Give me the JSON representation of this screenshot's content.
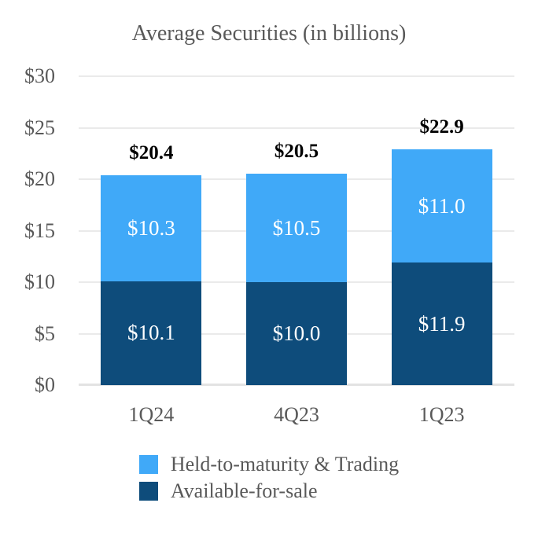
{
  "colors": {
    "background": "#FFFFFF",
    "light_blue": "#40A9F8",
    "dark_blue": "#0E4C7B",
    "text_gray": "#595959",
    "gridline": "#EAEAEA",
    "total_label": "#000000",
    "segment_label": "#FFFFFF"
  },
  "chart_data": {
    "type": "bar",
    "stacked": true,
    "title": "Average Securities (in billions)",
    "categories": [
      "1Q24",
      "4Q23",
      "1Q23"
    ],
    "series": [
      {
        "name": "Available-for-sale",
        "key": "available-for-sale",
        "color_key": "dark_blue",
        "values": [
          10.1,
          10.0,
          11.9
        ],
        "labels": [
          "$10.1",
          "$10.0",
          "$11.9"
        ]
      },
      {
        "name": "Held-to-maturity & Trading",
        "key": "held-to-maturity-trading",
        "color_key": "light_blue",
        "values": [
          10.3,
          10.5,
          11.0
        ],
        "labels": [
          "$10.3",
          "$10.5",
          "$11.0"
        ]
      }
    ],
    "totals": [
      20.4,
      20.5,
      22.9
    ],
    "total_labels": [
      "$20.4",
      "$20.5",
      "$22.9"
    ],
    "ylim": [
      0,
      30
    ],
    "yticks": [
      0,
      5,
      10,
      15,
      20,
      25,
      30
    ],
    "ytick_labels": [
      "$0",
      "$5",
      "$10",
      "$15",
      "$20",
      "$25",
      "$30"
    ],
    "grid": true,
    "legend_position": "bottom",
    "legend": [
      {
        "label": "Held-to-maturity & Trading",
        "color_key": "light_blue"
      },
      {
        "label": "Available-for-sale",
        "color_key": "dark_blue"
      }
    ]
  }
}
